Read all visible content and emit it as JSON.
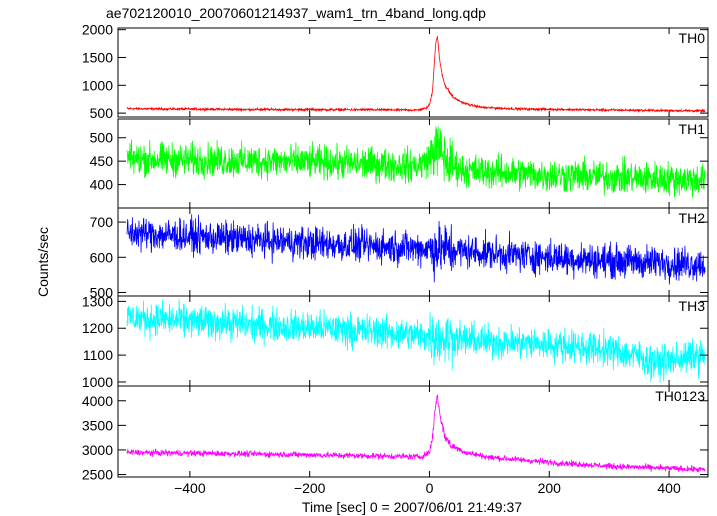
{
  "chart_data": {
    "type": "line",
    "title": "ae702120010_20070601214937_wam1_trn_4band_long.qdp",
    "xlabel": "Time [sec] 0 = 2007/06/01 21:49:37",
    "ylabel": "Counts/sec",
    "xlim": [
      -520,
      465
    ],
    "x_ticks": [
      -400,
      -200,
      0,
      200,
      400
    ],
    "grid": false,
    "panels": [
      {
        "name": "TH0",
        "color": "#ff0000",
        "ylim": [
          430,
          2030
        ],
        "y_ticks": [
          500,
          1000,
          1500,
          2000
        ],
        "x_range": [
          -505,
          460
        ],
        "profile": [
          [
            -505,
            580
          ],
          [
            -300,
            565
          ],
          [
            -100,
            560
          ],
          [
            -20,
            555
          ],
          [
            -5,
            590
          ],
          [
            0,
            650
          ],
          [
            5,
            900
          ],
          [
            10,
            1700
          ],
          [
            13,
            1900
          ],
          [
            17,
            1450
          ],
          [
            22,
            1150
          ],
          [
            27,
            980
          ],
          [
            32,
            900
          ],
          [
            40,
            780
          ],
          [
            55,
            690
          ],
          [
            70,
            640
          ],
          [
            90,
            600
          ],
          [
            150,
            575
          ],
          [
            300,
            555
          ],
          [
            460,
            540
          ]
        ],
        "noise_amp": 15
      },
      {
        "name": "TH1",
        "color": "#00ff00",
        "ylim": [
          350,
          540
        ],
        "y_ticks": [
          400,
          450,
          500
        ],
        "x_range": [
          -505,
          460
        ],
        "profile": [
          [
            -505,
            455
          ],
          [
            -200,
            448
          ],
          [
            -20,
            440
          ],
          [
            0,
            455
          ],
          [
            10,
            480
          ],
          [
            20,
            470
          ],
          [
            30,
            445
          ],
          [
            60,
            430
          ],
          [
            200,
            420
          ],
          [
            460,
            410
          ]
        ],
        "noise_amp": 26
      },
      {
        "name": "TH2",
        "color": "#0000ff",
        "ylim": [
          490,
          740
        ],
        "y_ticks": [
          500,
          600,
          700
        ],
        "x_range": [
          -505,
          460
        ],
        "profile": [
          [
            -505,
            670
          ],
          [
            -400,
            660
          ],
          [
            -200,
            640
          ],
          [
            0,
            625
          ],
          [
            100,
            612
          ],
          [
            200,
            600
          ],
          [
            300,
            590
          ],
          [
            460,
            580
          ]
        ],
        "noise_amp": 35
      },
      {
        "name": "TH3",
        "color": "#00ffff",
        "ylim": [
          985,
          1320
        ],
        "y_ticks": [
          1000,
          1100,
          1200,
          1300
        ],
        "x_range": [
          -505,
          460
        ],
        "profile": [
          [
            -505,
            1240
          ],
          [
            -300,
            1215
          ],
          [
            -100,
            1190
          ],
          [
            0,
            1170
          ],
          [
            100,
            1150
          ],
          [
            200,
            1140
          ],
          [
            300,
            1120
          ],
          [
            350,
            1095
          ],
          [
            380,
            1070
          ],
          [
            410,
            1085
          ],
          [
            460,
            1100
          ]
        ],
        "noise_amp": 45
      },
      {
        "name": "TH0123",
        "color": "#ff00ff",
        "ylim": [
          2450,
          4300
        ],
        "y_ticks": [
          2500,
          3000,
          3500,
          4000
        ],
        "x_range": [
          -505,
          460
        ],
        "profile": [
          [
            -505,
            2950
          ],
          [
            -300,
            2920
          ],
          [
            -100,
            2880
          ],
          [
            -15,
            2860
          ],
          [
            0,
            2950
          ],
          [
            5,
            3250
          ],
          [
            10,
            3900
          ],
          [
            13,
            4100
          ],
          [
            18,
            3700
          ],
          [
            25,
            3300
          ],
          [
            35,
            3100
          ],
          [
            60,
            2950
          ],
          [
            100,
            2850
          ],
          [
            200,
            2750
          ],
          [
            300,
            2670
          ],
          [
            460,
            2600
          ]
        ],
        "noise_amp": 45
      }
    ]
  }
}
